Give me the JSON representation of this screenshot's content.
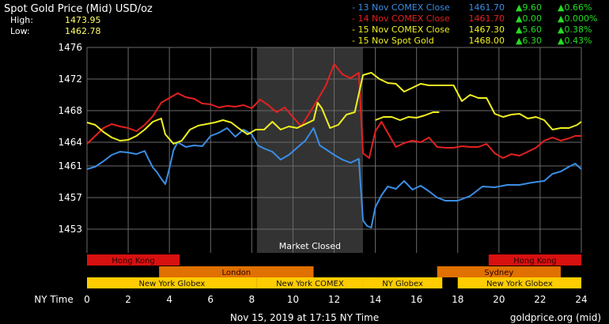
{
  "header": {
    "title": "Spot Gold Price (Mid) USD/oz",
    "high_label": "High:",
    "high_value": "1473.95",
    "low_label": "Low:",
    "low_value": "1462.78"
  },
  "legend": [
    {
      "label": "13 Nov COMEX Close",
      "price": "1461.70",
      "change": "9.60",
      "pct": "0.66%",
      "color": "#3a8ee6"
    },
    {
      "label": "14 Nov COMEX Close",
      "price": "1461.70",
      "change": "0.00",
      "pct": "0.000%",
      "color": "#e52020"
    },
    {
      "label": "15 Nov COMEX Close",
      "price": "1467.30",
      "change": "5.60",
      "pct": "0.38%",
      "color": "#f0f020"
    },
    {
      "label": "15 Nov Spot Gold",
      "price": "1468.00",
      "change": "6.30",
      "pct": "0.43%",
      "color": "#f0f020"
    }
  ],
  "colors": {
    "background": "#000000",
    "grid": "#6a6a6a",
    "closed_band": "#333333",
    "series_13": "#3a8ee6",
    "series_14": "#e52020",
    "series_15": "#f0f020",
    "change_up": "#22dd22",
    "session_asia": "#d81010",
    "session_europe": "#e07000",
    "session_us": "#ffcc00"
  },
  "chart_data": {
    "type": "line",
    "xlabel": "NY Time",
    "x_ticks": [
      0,
      2,
      4,
      6,
      8,
      10,
      12,
      14,
      16,
      18,
      20,
      22,
      24
    ],
    "y_ticks": [
      1453,
      1457,
      1461,
      1464,
      1468,
      1472,
      1476
    ],
    "xlim": [
      0,
      24
    ],
    "ylim": [
      1450,
      1476
    ],
    "grid": true,
    "closed_band": {
      "from": 8.25,
      "to": 13.4,
      "label": "Market Closed"
    },
    "series": [
      {
        "name": "13 Nov COMEX Close",
        "color": "#3a8ee6",
        "points": [
          [
            0,
            1460.6
          ],
          [
            0.4,
            1460.9
          ],
          [
            0.8,
            1461.6
          ],
          [
            1.2,
            1462.4
          ],
          [
            1.6,
            1462.8
          ],
          [
            2.0,
            1462.7
          ],
          [
            2.4,
            1462.5
          ],
          [
            2.8,
            1462.9
          ],
          [
            3.0,
            1461.8
          ],
          [
            3.2,
            1460.8
          ],
          [
            3.4,
            1460.2
          ],
          [
            3.6,
            1459.4
          ],
          [
            3.8,
            1458.7
          ],
          [
            4.0,
            1460.7
          ],
          [
            4.2,
            1463.0
          ],
          [
            4.4,
            1464.0
          ],
          [
            4.8,
            1463.4
          ],
          [
            5.2,
            1463.6
          ],
          [
            5.6,
            1463.5
          ],
          [
            6.0,
            1464.8
          ],
          [
            6.4,
            1465.2
          ],
          [
            6.8,
            1465.8
          ],
          [
            7.2,
            1464.7
          ],
          [
            7.6,
            1465.6
          ],
          [
            8.0,
            1465.0
          ],
          [
            8.3,
            1463.6
          ],
          [
            8.6,
            1463.2
          ],
          [
            9.0,
            1462.8
          ],
          [
            9.4,
            1461.8
          ],
          [
            9.8,
            1462.4
          ],
          [
            10.2,
            1463.3
          ],
          [
            10.6,
            1464.2
          ],
          [
            11.0,
            1465.8
          ],
          [
            11.3,
            1463.6
          ],
          [
            11.6,
            1463.1
          ],
          [
            12.0,
            1462.4
          ],
          [
            12.4,
            1461.8
          ],
          [
            12.8,
            1461.4
          ],
          [
            13.2,
            1461.9
          ],
          [
            13.4,
            1454.1
          ],
          [
            13.6,
            1453.4
          ],
          [
            13.8,
            1453.2
          ],
          [
            14.0,
            1455.8
          ],
          [
            14.3,
            1457.3
          ],
          [
            14.6,
            1458.4
          ],
          [
            15.0,
            1458.1
          ],
          [
            15.4,
            1459.1
          ],
          [
            15.8,
            1458.0
          ],
          [
            16.2,
            1458.5
          ],
          [
            16.6,
            1457.8
          ],
          [
            17.0,
            1457.0
          ],
          [
            17.4,
            1456.6
          ],
          [
            18.0,
            1456.6
          ],
          [
            18.6,
            1457.2
          ],
          [
            19.2,
            1458.4
          ],
          [
            19.8,
            1458.3
          ],
          [
            20.4,
            1458.6
          ],
          [
            21.0,
            1458.6
          ],
          [
            21.6,
            1458.9
          ],
          [
            22.2,
            1459.1
          ],
          [
            22.6,
            1460.0
          ],
          [
            23.0,
            1460.3
          ],
          [
            23.4,
            1460.9
          ],
          [
            23.7,
            1461.3
          ],
          [
            24.0,
            1460.6
          ]
        ]
      },
      {
        "name": "14 Nov COMEX Close",
        "color": "#e52020",
        "points": [
          [
            0,
            1463.8
          ],
          [
            0.4,
            1464.8
          ],
          [
            0.8,
            1465.8
          ],
          [
            1.2,
            1466.3
          ],
          [
            1.6,
            1466.0
          ],
          [
            2.0,
            1465.8
          ],
          [
            2.4,
            1465.4
          ],
          [
            2.8,
            1466.2
          ],
          [
            3.2,
            1467.3
          ],
          [
            3.6,
            1469.0
          ],
          [
            4.0,
            1469.6
          ],
          [
            4.4,
            1470.2
          ],
          [
            4.8,
            1469.7
          ],
          [
            5.2,
            1469.5
          ],
          [
            5.6,
            1468.9
          ],
          [
            6.0,
            1468.8
          ],
          [
            6.4,
            1468.4
          ],
          [
            6.8,
            1468.6
          ],
          [
            7.2,
            1468.5
          ],
          [
            7.6,
            1468.7
          ],
          [
            8.0,
            1468.3
          ],
          [
            8.4,
            1469.4
          ],
          [
            8.8,
            1468.7
          ],
          [
            9.2,
            1467.8
          ],
          [
            9.6,
            1468.4
          ],
          [
            10.0,
            1467.2
          ],
          [
            10.4,
            1466.0
          ],
          [
            10.8,
            1467.7
          ],
          [
            11.2,
            1469.4
          ],
          [
            11.6,
            1471.2
          ],
          [
            12.0,
            1473.9
          ],
          [
            12.4,
            1472.6
          ],
          [
            12.8,
            1472.1
          ],
          [
            13.2,
            1472.8
          ],
          [
            13.4,
            1462.6
          ],
          [
            13.7,
            1462.0
          ],
          [
            14.0,
            1465.4
          ],
          [
            14.3,
            1466.6
          ],
          [
            14.6,
            1465.2
          ],
          [
            15.0,
            1463.4
          ],
          [
            15.4,
            1463.9
          ],
          [
            15.8,
            1464.2
          ],
          [
            16.2,
            1464.0
          ],
          [
            16.6,
            1464.6
          ],
          [
            17.0,
            1463.4
          ],
          [
            17.4,
            1463.3
          ],
          [
            17.8,
            1463.3
          ],
          [
            18.2,
            1463.5
          ],
          [
            18.6,
            1463.4
          ],
          [
            19.0,
            1463.4
          ],
          [
            19.4,
            1463.8
          ],
          [
            19.8,
            1462.6
          ],
          [
            20.2,
            1462.0
          ],
          [
            20.6,
            1462.5
          ],
          [
            21.0,
            1462.3
          ],
          [
            21.4,
            1462.8
          ],
          [
            21.8,
            1463.3
          ],
          [
            22.2,
            1464.2
          ],
          [
            22.6,
            1464.6
          ],
          [
            23.0,
            1464.2
          ],
          [
            23.4,
            1464.5
          ],
          [
            23.7,
            1464.8
          ],
          [
            24.0,
            1464.8
          ]
        ]
      },
      {
        "name": "15 Nov COMEX Close",
        "color": "#f0f020",
        "points": [
          [
            0,
            1466.5
          ],
          [
            0.4,
            1466.2
          ],
          [
            0.8,
            1465.3
          ],
          [
            1.2,
            1464.6
          ],
          [
            1.6,
            1464.2
          ],
          [
            2.0,
            1464.3
          ],
          [
            2.4,
            1464.8
          ],
          [
            2.8,
            1465.6
          ],
          [
            3.2,
            1466.6
          ],
          [
            3.6,
            1467.0
          ],
          [
            3.8,
            1465.0
          ],
          [
            4.2,
            1463.8
          ],
          [
            4.6,
            1464.2
          ],
          [
            5.0,
            1465.6
          ],
          [
            5.4,
            1466.1
          ],
          [
            5.8,
            1466.3
          ],
          [
            6.2,
            1466.5
          ],
          [
            6.6,
            1466.8
          ],
          [
            7.0,
            1466.5
          ],
          [
            7.4,
            1465.7
          ],
          [
            7.8,
            1465.0
          ],
          [
            8.2,
            1465.6
          ],
          [
            8.6,
            1465.6
          ],
          [
            9.0,
            1466.6
          ],
          [
            9.4,
            1465.6
          ],
          [
            9.8,
            1466.0
          ],
          [
            10.2,
            1465.8
          ],
          [
            10.6,
            1466.3
          ],
          [
            11.0,
            1466.8
          ],
          [
            11.2,
            1469.0
          ],
          [
            11.4,
            1468.3
          ],
          [
            11.8,
            1465.8
          ],
          [
            12.2,
            1466.2
          ],
          [
            12.6,
            1467.5
          ],
          [
            13.0,
            1467.8
          ],
          [
            13.4,
            1472.5
          ],
          [
            13.8,
            1472.8
          ],
          [
            14.2,
            1472.0
          ],
          [
            14.6,
            1471.5
          ],
          [
            15.0,
            1471.4
          ],
          [
            15.4,
            1470.4
          ],
          [
            15.8,
            1470.9
          ],
          [
            16.2,
            1471.4
          ],
          [
            16.6,
            1471.2
          ],
          [
            17.0,
            1471.2
          ],
          [
            17.4,
            1471.2
          ],
          [
            17.8,
            1471.2
          ],
          [
            18.2,
            1469.2
          ],
          [
            18.6,
            1470.0
          ],
          [
            19.0,
            1469.6
          ],
          [
            19.4,
            1469.6
          ],
          [
            19.8,
            1467.6
          ],
          [
            20.2,
            1467.2
          ],
          [
            20.6,
            1467.5
          ],
          [
            21.0,
            1467.6
          ],
          [
            21.4,
            1467.0
          ],
          [
            21.8,
            1467.2
          ],
          [
            22.2,
            1466.8
          ],
          [
            22.6,
            1465.6
          ],
          [
            23.0,
            1465.8
          ],
          [
            23.4,
            1465.8
          ],
          [
            23.8,
            1466.2
          ],
          [
            24.0,
            1466.6
          ]
        ]
      },
      {
        "name": "15 Nov Spot Gold",
        "color": "#f0f020",
        "points": [
          [
            14.0,
            1466.8
          ],
          [
            14.4,
            1467.2
          ],
          [
            14.8,
            1467.2
          ],
          [
            15.2,
            1466.8
          ],
          [
            15.6,
            1467.2
          ],
          [
            16.0,
            1467.1
          ],
          [
            16.4,
            1467.4
          ],
          [
            16.8,
            1467.8
          ],
          [
            17.1,
            1467.8
          ]
        ]
      }
    ],
    "sessions": [
      {
        "name": "Hong Kong",
        "row": 0,
        "from": 0,
        "to": 4.5,
        "color": "#d81010"
      },
      {
        "name": "Hong Kong",
        "row": 0,
        "from": 19.5,
        "to": 24,
        "color": "#d81010"
      },
      {
        "name": "London",
        "row": 1,
        "from": 3.5,
        "to": 11,
        "color": "#e07000"
      },
      {
        "name": "Sydney",
        "row": 1,
        "from": 17,
        "to": 23,
        "color": "#e07000"
      },
      {
        "name": "New York Globex",
        "row": 2,
        "from": 0,
        "to": 8.25,
        "color": "#ffcc00"
      },
      {
        "name": "New York COMEX",
        "row": 2,
        "from": 8.25,
        "to": 13.4,
        "color": "#ffcc00"
      },
      {
        "name": "NY Globex",
        "row": 2,
        "from": 13.4,
        "to": 17.25,
        "color": "#ffcc00"
      },
      {
        "name": "New York Globex",
        "row": 2,
        "from": 18,
        "to": 24,
        "color": "#ffcc00"
      }
    ]
  },
  "footer": {
    "timestamp": "Nov 15, 2019 at 17:15 NY Time",
    "source": "goldprice.org (mid)"
  }
}
